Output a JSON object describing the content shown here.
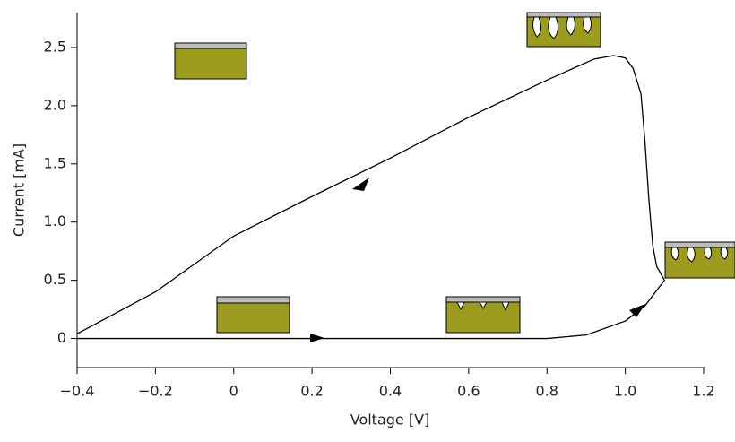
{
  "chart_data": {
    "type": "line",
    "x_label": "Voltage [V]",
    "y_label": "Current [mA]",
    "series": [
      {
        "color": "#000000",
        "x": [
          -0.4,
          0.8,
          0.9,
          1.0,
          1.05,
          1.1,
          1.08,
          1.07,
          1.06,
          1.05,
          1.04,
          1.02,
          1.0,
          0.97,
          0.92,
          0.8,
          0.6,
          0.4,
          0.2,
          0,
          -0.2,
          -0.4
        ],
        "values": [
          0,
          0,
          0.03,
          0.15,
          0.28,
          0.5,
          0.62,
          0.8,
          1.2,
          1.7,
          2.1,
          2.32,
          2.41,
          2.43,
          2.4,
          2.22,
          1.9,
          1.55,
          1.22,
          0.88,
          0.4,
          0.04
        ]
      }
    ],
    "xlim": [
      -0.4,
      1.2
    ],
    "ylim": [
      -0.25,
      2.8
    ],
    "xticks": [
      {
        "value": -0.4,
        "label": "−0.4"
      },
      {
        "value": -0.2,
        "label": "−0.2"
      },
      0,
      0.2,
      0.4,
      0.6,
      0.8,
      {
        "value": 1.0,
        "label": "1.0"
      },
      1.2
    ],
    "yticks": [
      0,
      0.5,
      {
        "value": 1.0,
        "label": "1.0"
      },
      1.5,
      {
        "value": 2.0,
        "label": "2.0"
      },
      2.5
    ]
  }
}
